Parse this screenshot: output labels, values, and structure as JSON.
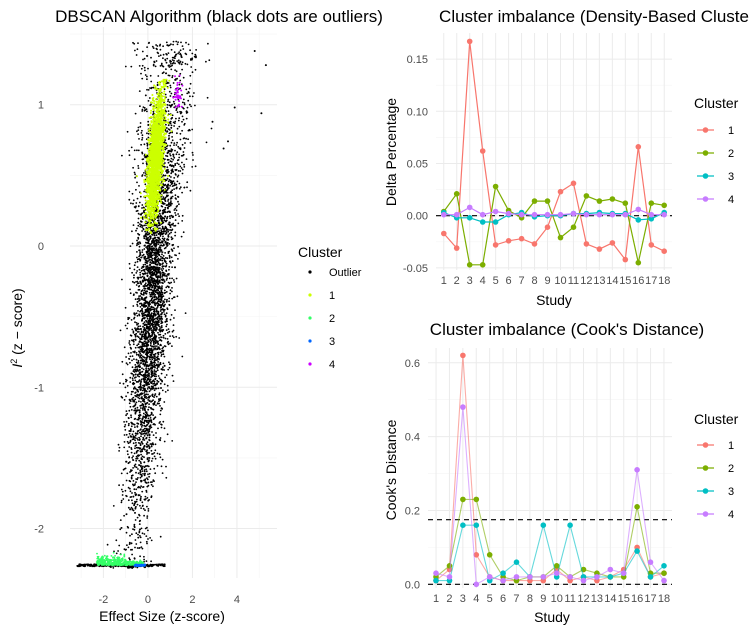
{
  "chart_data": [
    {
      "type": "scatter",
      "title": "DBSCAN Algorithm (black dots are outliers)",
      "xlabel": "Effect Size (z-score)",
      "ylabel_main": "I",
      "ylabel_sup": "2",
      "ylabel_rest": " (z − score)",
      "xlim": [
        -3.5,
        5.8
      ],
      "ylim": [
        -2.35,
        1.55
      ],
      "x_ticks": [
        -2,
        0,
        2,
        4
      ],
      "y_ticks": [
        -2,
        -1,
        0,
        1
      ],
      "x_tick_labels": [
        "-2",
        "0",
        "2",
        "4"
      ],
      "y_tick_labels": [
        "-2",
        "-1",
        "0",
        "1"
      ],
      "legend_title": "Cluster",
      "legend": [
        {
          "label": "Outlier",
          "color": "#000000"
        },
        {
          "label": "1",
          "color": "#ccff00"
        },
        {
          "label": "2",
          "color": "#33ff66"
        },
        {
          "label": "3",
          "color": "#0066ff"
        },
        {
          "label": "4",
          "color": "#cc00ff"
        }
      ],
      "clusters": {
        "outlier_core": {
          "cx": 0.2,
          "cy": -0.3,
          "spread_x": 0.75,
          "spread_y": 0.85,
          "n": 4200,
          "color": "#000000"
        },
        "cluster_1": {
          "center": [
            0.35,
            0.62
          ],
          "spread": [
            0.35,
            0.4
          ],
          "n": 2200,
          "color": "#ccff00"
        },
        "cluster_2": {
          "y": -2.26,
          "x_range": [
            -2.3,
            -0.2
          ],
          "n": 400,
          "color": "#33ff66"
        },
        "cluster_3": {
          "y": -2.26,
          "x_range": [
            -0.6,
            -0.1
          ],
          "n": 60,
          "color": "#0066ff"
        },
        "cluster_4": {
          "center": [
            1.35,
            1.07
          ],
          "spread": [
            0.08,
            0.08
          ],
          "n": 40,
          "color": "#cc00ff"
        },
        "outlier_extremes": [
          [
            4.8,
            1.38
          ],
          [
            5.3,
            1.28
          ],
          [
            5.1,
            0.94
          ],
          [
            3.6,
            0.74
          ],
          [
            3.9,
            0.98
          ],
          [
            3.4,
            0.69
          ],
          [
            2.9,
            0.88
          ]
        ]
      }
    },
    {
      "type": "line",
      "title": "Cluster imbalance (Density-Based Cluste",
      "xlabel": "Study",
      "ylabel": "Delta Percentage",
      "x": [
        1,
        2,
        3,
        4,
        5,
        6,
        7,
        8,
        9,
        10,
        11,
        12,
        13,
        14,
        15,
        16,
        17,
        18
      ],
      "x_tick_labels": [
        "1",
        "2",
        "3",
        "4",
        "5",
        "6",
        "7",
        "8",
        "9",
        "10",
        "11",
        "12",
        "13",
        "14",
        "15",
        "16",
        "17",
        "18"
      ],
      "ylim": [
        -0.052,
        0.175
      ],
      "y_ticks": [
        -0.05,
        0.0,
        0.05,
        0.1,
        0.15
      ],
      "y_tick_labels": [
        "-0.05",
        "0.00",
        "0.05",
        "0.10",
        "0.15"
      ],
      "hline": 0,
      "legend_title": "Cluster",
      "series": [
        {
          "name": "1",
          "color": "#f8766d",
          "values": [
            -0.017,
            -0.031,
            0.167,
            0.062,
            -0.028,
            -0.024,
            -0.022,
            -0.027,
            -0.011,
            0.023,
            0.031,
            -0.027,
            -0.032,
            -0.026,
            -0.042,
            0.066,
            -0.028,
            -0.034
          ]
        },
        {
          "name": "2",
          "color": "#7cae00",
          "values": [
            0.004,
            0.021,
            -0.047,
            -0.047,
            0.028,
            0.005,
            -0.002,
            0.014,
            0.014,
            -0.021,
            -0.011,
            0.019,
            0.014,
            0.016,
            0.012,
            -0.045,
            0.012,
            0.01
          ]
        },
        {
          "name": "3",
          "color": "#00bfc4",
          "values": [
            0.003,
            -0.002,
            -0.002,
            -0.006,
            -0.006,
            0.001,
            0.003,
            -0.001,
            0.0,
            0.0,
            0.002,
            0.002,
            0.003,
            0.002,
            0.002,
            -0.004,
            -0.003,
            0.003
          ]
        },
        {
          "name": "4",
          "color": "#c77cff",
          "values": [
            0.001,
            0.001,
            0.008,
            0.001,
            0.004,
            0.002,
            0.001,
            0.001,
            0.001,
            0.001,
            0.002,
            0.001,
            0.001,
            0.001,
            0.001,
            0.006,
            0.001,
            0.001
          ]
        }
      ]
    },
    {
      "type": "line",
      "title": "Cluster imbalance (Cook's Distance)",
      "xlabel": "Study",
      "ylabel": "Cook's Distance",
      "x": [
        1,
        2,
        3,
        4,
        5,
        6,
        7,
        8,
        9,
        10,
        11,
        12,
        13,
        14,
        15,
        16,
        17,
        18
      ],
      "x_tick_labels": [
        "1",
        "2",
        "3",
        "4",
        "5",
        "6",
        "7",
        "8",
        "9",
        "10",
        "11",
        "12",
        "13",
        "14",
        "15",
        "16",
        "17",
        "18"
      ],
      "ylim": [
        -0.01,
        0.64
      ],
      "y_ticks": [
        0.0,
        0.2,
        0.4,
        0.6
      ],
      "y_tick_labels": [
        "0.0",
        "0.2",
        "0.4",
        "0.6"
      ],
      "hlines": [
        0.0,
        0.175
      ],
      "legend_title": "Cluster",
      "series": [
        {
          "name": "1",
          "color": "#f8766d",
          "values": [
            0.01,
            0.04,
            0.62,
            0.08,
            0.02,
            0.01,
            0.01,
            0.01,
            0.01,
            0.04,
            0.01,
            0.02,
            0.01,
            0.02,
            0.04,
            0.1,
            0.02,
            0.03
          ]
        },
        {
          "name": "2",
          "color": "#7cae00",
          "values": [
            0.02,
            0.05,
            0.23,
            0.23,
            0.08,
            0.02,
            0.01,
            0.02,
            0.02,
            0.05,
            0.02,
            0.04,
            0.03,
            0.02,
            0.02,
            0.21,
            0.03,
            0.03
          ]
        },
        {
          "name": "3",
          "color": "#00bfc4",
          "values": [
            0.01,
            0.01,
            0.16,
            0.16,
            0.01,
            0.03,
            0.06,
            0.02,
            0.16,
            0.02,
            0.16,
            0.02,
            0.02,
            0.02,
            0.03,
            0.09,
            0.02,
            0.05
          ]
        },
        {
          "name": "4",
          "color": "#c77cff",
          "values": [
            0.03,
            0.02,
            0.48,
            0.0,
            0.02,
            0.01,
            0.02,
            0.02,
            0.02,
            0.03,
            0.02,
            0.01,
            0.02,
            0.04,
            0.03,
            0.31,
            0.06,
            0.01
          ]
        }
      ]
    }
  ]
}
